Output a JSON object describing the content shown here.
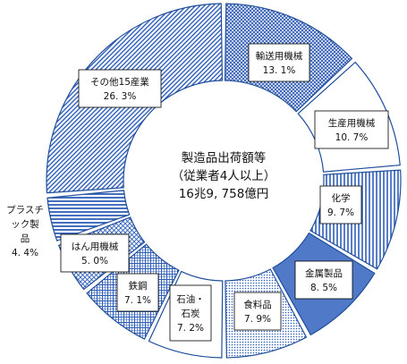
{
  "chart_data": {
    "type": "pie",
    "title": [
      "製造品出荷額等",
      "（従業者4人以上）",
      "16兆9, 758億円"
    ],
    "unit": "%",
    "slices": [
      {
        "label": "輸送用機械",
        "value": 13.1,
        "value_label": "13. 1%",
        "pattern": "crosshatch"
      },
      {
        "label": "生産用機械",
        "value": 10.7,
        "value_label": "10. 7%",
        "pattern": "white"
      },
      {
        "label": "化学",
        "value": 9.7,
        "value_label": "9. 7%",
        "pattern": "lines-vertical"
      },
      {
        "label": "金属製品",
        "value": 8.5,
        "value_label": "8. 5%",
        "pattern": "solid"
      },
      {
        "label": "食料品",
        "value": 7.9,
        "value_label": "7. 9%",
        "pattern": "dots"
      },
      {
        "label": "石油・石炭",
        "value": 7.2,
        "value_label": "7. 2%",
        "pattern": "white"
      },
      {
        "label": "鉄鋼",
        "value": 7.1,
        "value_label": "7. 1%",
        "pattern": "checker"
      },
      {
        "label": "はん用機械",
        "value": 5.0,
        "value_label": "5. 0%",
        "pattern": "diag-hatch"
      },
      {
        "label": "プラスチック製品",
        "value": 4.4,
        "value_label": "4. 4%",
        "pattern": "horizontal"
      },
      {
        "label": "その他15産業",
        "value": 26.3,
        "value_label": "26. 3%",
        "pattern": "lines-diagonal"
      }
    ]
  },
  "colors": {
    "fill": "#4a72c9",
    "solid": "#5079c8",
    "stroke": "#1f4e9a",
    "text": "#111111"
  }
}
